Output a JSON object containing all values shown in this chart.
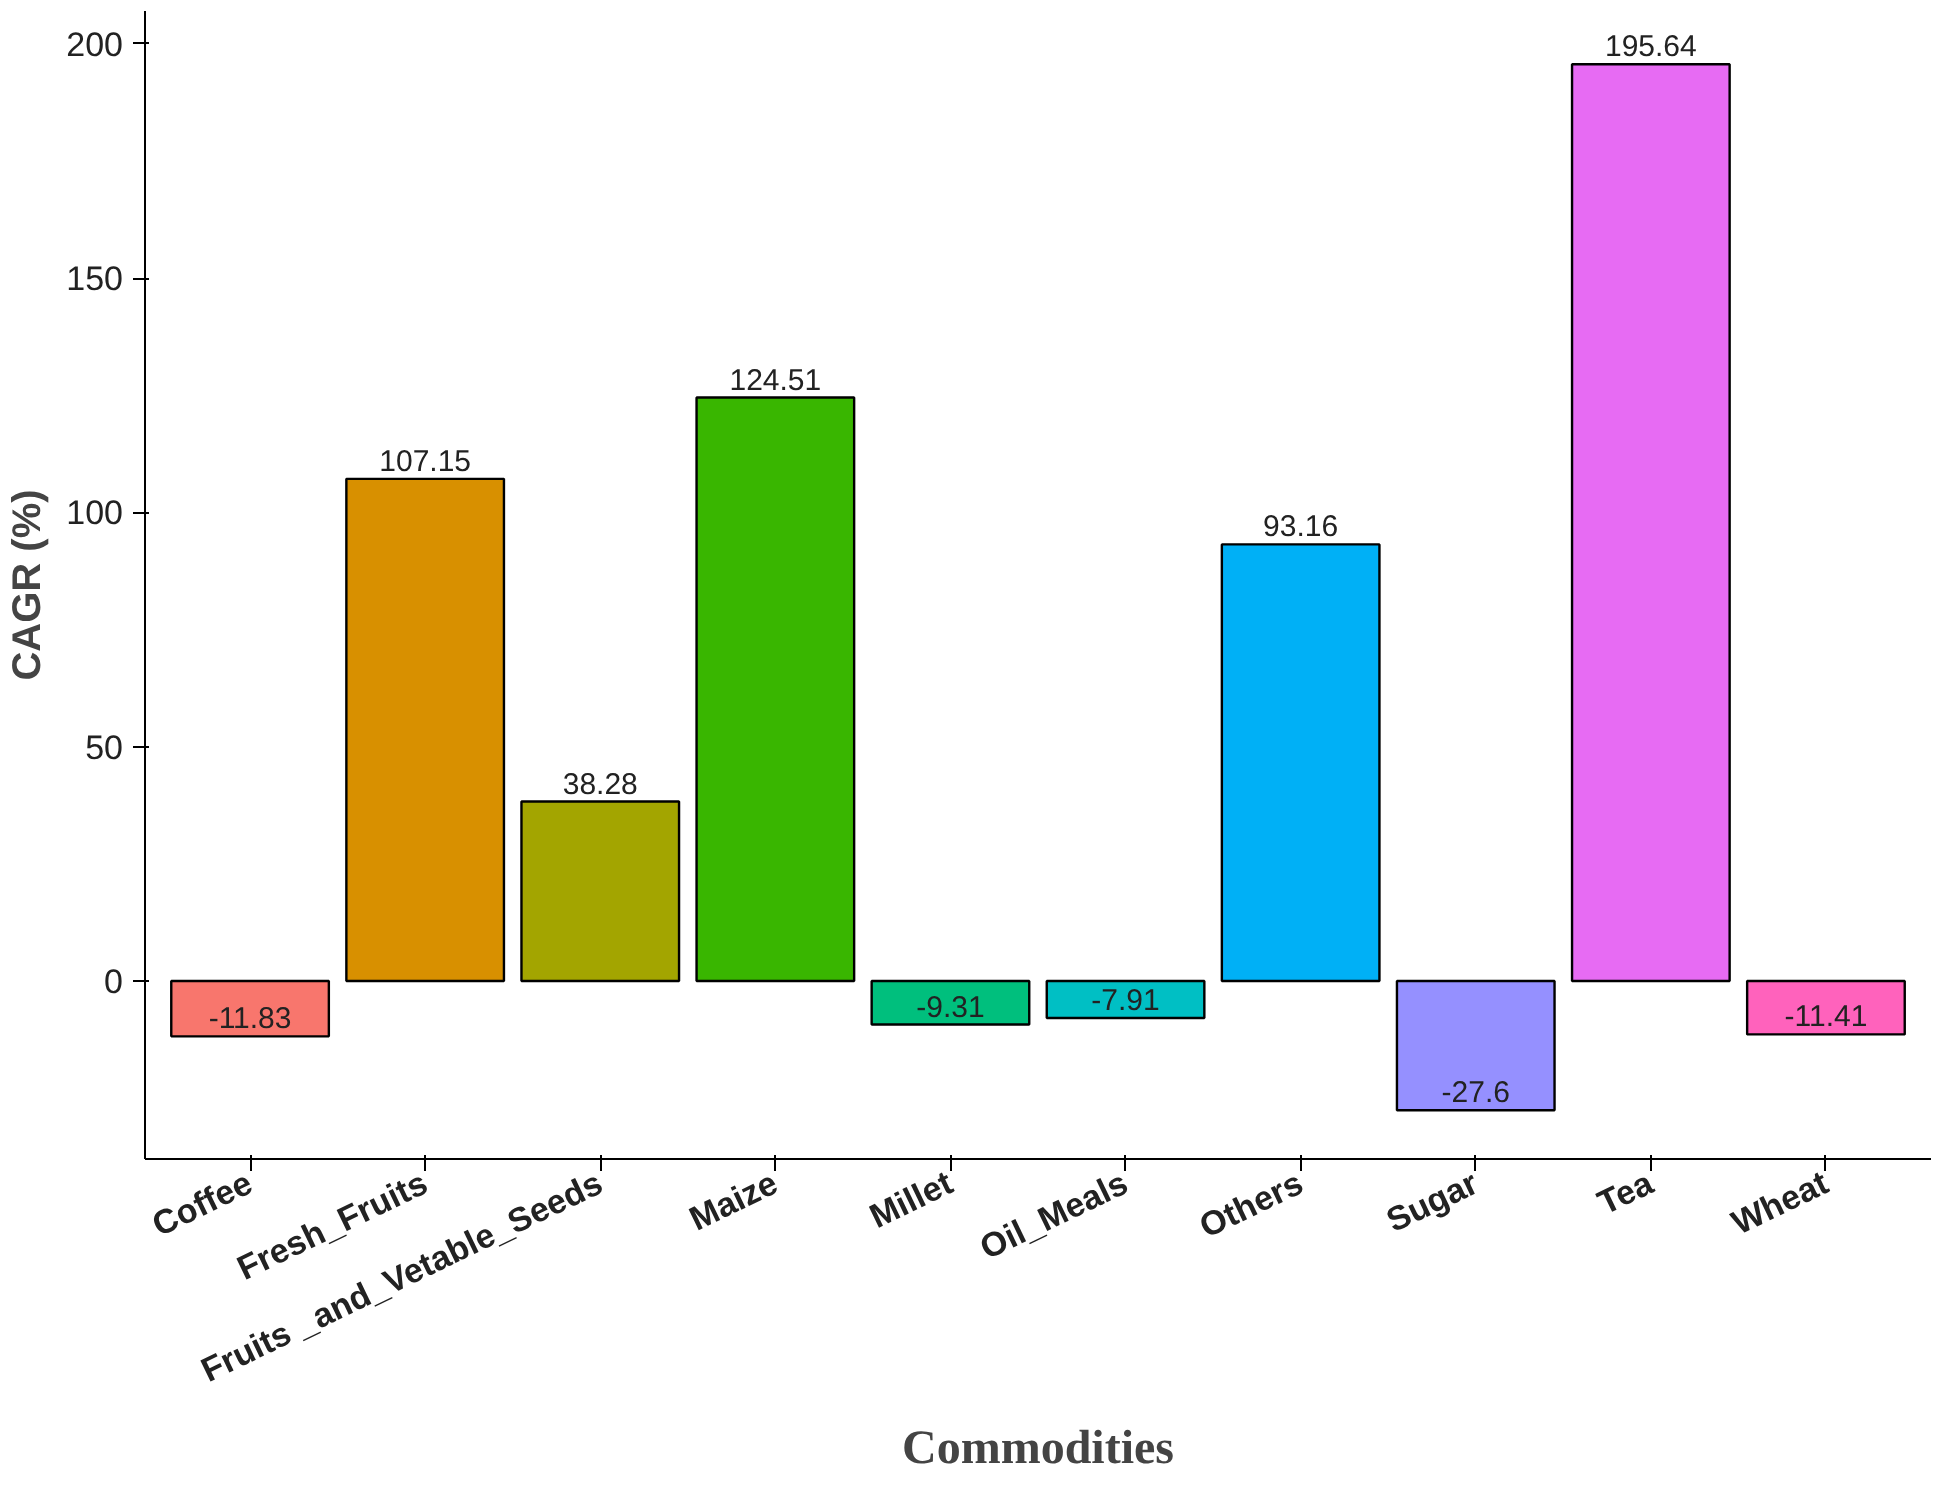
{
  "chart_data": {
    "type": "bar",
    "xlabel": "Commodities",
    "ylabel": "CAGR (%)",
    "categories": [
      "Coffee",
      "Fresh_Fruits",
      "Fruits _and_Vetable_Seeds",
      "Maize",
      "Millet",
      "Oil_Meals",
      "Others",
      "Sugar",
      "Tea",
      "Wheat"
    ],
    "values": [
      -11.83,
      107.15,
      38.28,
      124.51,
      -9.31,
      -7.91,
      93.16,
      -27.6,
      195.64,
      -11.41
    ],
    "colors": [
      "#f8766d",
      "#d89000",
      "#a3a500",
      "#39b600",
      "#00bf7d",
      "#00bfc4",
      "#00b0f6",
      "#9590ff",
      "#e76bf3",
      "#ff62bc"
    ],
    "ylim": [
      -38,
      207
    ],
    "yticks": [
      0,
      50,
      100,
      150,
      200
    ],
    "data_labels": true,
    "grid": false
  }
}
